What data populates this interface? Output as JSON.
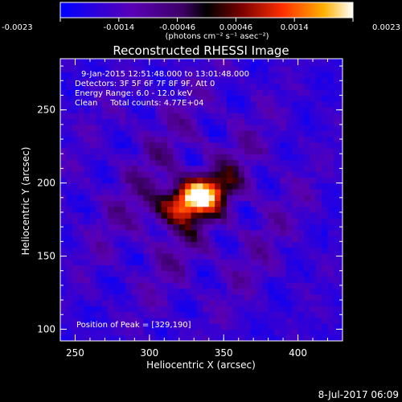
{
  "colorbar": {
    "ticks": [
      "-0.0023",
      "-0.0014",
      "-0.00046",
      "0.00046",
      "0.0014",
      "0.0023"
    ],
    "unit_label": "(photons cm⁻² s⁻¹ asec⁻²)",
    "range": [
      -0.0023,
      0.0023
    ],
    "colors": [
      "#0000ff",
      "#5a00b4",
      "#3c0064",
      "#000000",
      "#7a0000",
      "#ff3000",
      "#ffb000",
      "#ffffff"
    ]
  },
  "chart_data": {
    "type": "heatmap",
    "title": "Reconstructed RHESSI Image",
    "xlabel": "Heliocentric X (arcsec)",
    "ylabel": "Heliocentric Y (arcsec)",
    "xlim": [
      240,
      430
    ],
    "ylim": [
      92,
      285
    ],
    "xticks": [
      "250",
      "300",
      "350",
      "400"
    ],
    "yticks": [
      "100",
      "150",
      "200",
      "250"
    ],
    "annotations": [
      "9-Jan-2015 12:51:48.000 to 13:01:48.000",
      "Detectors: 3F 5F 6F 7F 8F 9F, Att 0",
      "Energy Range: 6.0 - 12.0 keV",
      "Clean     Total counts: 4.77E+04"
    ],
    "peak_label": "Position of Peak = [329,190]",
    "peak": {
      "x": 329,
      "y": 190
    }
  },
  "footer": {
    "date": "8-Jul-2017 06:09"
  }
}
